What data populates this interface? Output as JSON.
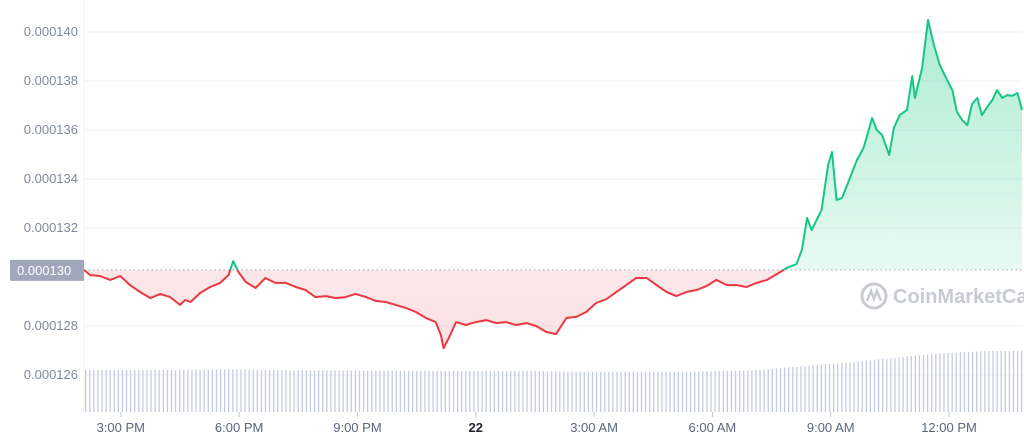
{
  "chart_data": {
    "type": "line",
    "title": "",
    "xlabel": "",
    "ylabel": "",
    "ylim": [
      0.0001255,
      0.000141
    ],
    "xlim": [
      "21 14:04",
      "22 13:51"
    ],
    "grid": "horizontal",
    "y_ticks": [
      "0.000140",
      "0.000138",
      "0.000136",
      "0.000134",
      "0.000132",
      "0.000128",
      "0.000126"
    ],
    "y_tick_values": [
      0.00014,
      0.000138,
      0.000136,
      0.000134,
      0.000132,
      0.000128,
      0.000126
    ],
    "x_ticks": [
      {
        "label": "3:00 PM",
        "t": "21 15:00",
        "bold": false
      },
      {
        "label": "6:00 PM",
        "t": "21 18:00",
        "bold": false
      },
      {
        "label": "9:00 PM",
        "t": "21 21:00",
        "bold": false
      },
      {
        "label": "22",
        "t": "22 00:00",
        "bold": true
      },
      {
        "label": "3:00 AM",
        "t": "22 03:00",
        "bold": false
      },
      {
        "label": "6:00 AM",
        "t": "22 06:00",
        "bold": false
      },
      {
        "label": "9:00 AM",
        "t": "22 09:00",
        "bold": false
      },
      {
        "label": "12:00 PM",
        "t": "22 12:00",
        "bold": false
      }
    ],
    "reference": {
      "label": "0.000130",
      "value": 0.00013029
    },
    "colors": {
      "up": "#16c784",
      "down": "#ea3943",
      "volume": "#c7cbe0",
      "grid": "#eff2f5",
      "ref_box": "#a1a7bb"
    },
    "watermark": "CoinMarketCap",
    "series": [
      {
        "points": [
          [
            "21 14:04",
            0.00013029
          ],
          [
            "21 14:13",
            0.00013008
          ],
          [
            "21 14:28",
            0.00013004
          ],
          [
            "21 14:44",
            0.00012988
          ],
          [
            "21 14:59",
            0.00013004
          ],
          [
            "21 15:14",
            0.00012967
          ],
          [
            "21 15:29",
            0.00012939
          ],
          [
            "21 15:45",
            0.00012914
          ],
          [
            "21 16:00",
            0.00012931
          ],
          [
            "21 16:15",
            0.00012918
          ],
          [
            "21 16:30",
            0.00012886
          ],
          [
            "21 16:38",
            0.00012906
          ],
          [
            "21 16:46",
            0.00012898
          ],
          [
            "21 17:01",
            0.00012935
          ],
          [
            "21 17:16",
            0.00012959
          ],
          [
            "21 17:31",
            0.00012976
          ],
          [
            "21 17:44",
            0.00013008
          ],
          [
            "21 17:51",
            0.00013065
          ],
          [
            "21 17:59",
            0.0001302
          ],
          [
            "21 18:10",
            0.0001298
          ],
          [
            "21 18:25",
            0.00012955
          ],
          [
            "21 18:40",
            0.00012996
          ],
          [
            "21 18:55",
            0.00012976
          ],
          [
            "21 19:11",
            0.00012976
          ],
          [
            "21 19:26",
            0.00012959
          ],
          [
            "21 19:41",
            0.00012947
          ],
          [
            "21 19:56",
            0.00012918
          ],
          [
            "21 20:12",
            0.00012922
          ],
          [
            "21 20:27",
            0.00012914
          ],
          [
            "21 20:42",
            0.00012918
          ],
          [
            "21 20:57",
            0.00012931
          ],
          [
            "21 21:13",
            0.00012918
          ],
          [
            "21 21:28",
            0.00012902
          ],
          [
            "21 21:43",
            0.00012898
          ],
          [
            "21 21:58",
            0.00012886
          ],
          [
            "21 22:14",
            0.00012873
          ],
          [
            "21 22:29",
            0.00012857
          ],
          [
            "21 22:44",
            0.00012833
          ],
          [
            "21 22:59",
            0.00012816
          ],
          [
            "21 23:07",
            0.00012763
          ],
          [
            "21 23:11",
            0.0001271
          ],
          [
            "21 23:19",
            0.00012751
          ],
          [
            "21 23:30",
            0.00012816
          ],
          [
            "21 23:45",
            0.00012804
          ],
          [
            "22 00:00",
            0.00012816
          ],
          [
            "22 00:16",
            0.00012824
          ],
          [
            "22 00:31",
            0.00012812
          ],
          [
            "22 00:46",
            0.00012816
          ],
          [
            "22 01:01",
            0.00012804
          ],
          [
            "22 01:17",
            0.00012812
          ],
          [
            "22 01:32",
            0.000128
          ],
          [
            "22 01:47",
            0.00012776
          ],
          [
            "22 02:02",
            0.00012767
          ],
          [
            "22 02:18",
            0.00012833
          ],
          [
            "22 02:33",
            0.00012837
          ],
          [
            "22 02:48",
            0.00012857
          ],
          [
            "22 03:03",
            0.00012894
          ],
          [
            "22 03:19",
            0.0001291
          ],
          [
            "22 03:34",
            0.00012939
          ],
          [
            "22 03:49",
            0.00012967
          ],
          [
            "22 04:04",
            0.00012996
          ],
          [
            "22 04:20",
            0.00012996
          ],
          [
            "22 04:35",
            0.00012967
          ],
          [
            "22 04:50",
            0.00012939
          ],
          [
            "22 05:05",
            0.00012922
          ],
          [
            "22 05:21",
            0.00012939
          ],
          [
            "22 05:36",
            0.00012947
          ],
          [
            "22 05:51",
            0.00012963
          ],
          [
            "22 06:06",
            0.00012988
          ],
          [
            "22 06:22",
            0.00012967
          ],
          [
            "22 06:37",
            0.00012967
          ],
          [
            "22 06:52",
            0.00012959
          ],
          [
            "22 07:07",
            0.00012976
          ],
          [
            "22 07:23",
            0.00012988
          ],
          [
            "22 07:38",
            0.00013012
          ],
          [
            "22 07:53",
            0.00013037
          ],
          [
            "22 08:08",
            0.00013053
          ],
          [
            "22 08:16",
            0.0001311
          ],
          [
            "22 08:24",
            0.00013241
          ],
          [
            "22 08:31",
            0.00013192
          ],
          [
            "22 08:46",
            0.00013273
          ],
          [
            "22 08:56",
            0.00013457
          ],
          [
            "22 09:02",
            0.0001351
          ],
          [
            "22 09:09",
            0.00013314
          ],
          [
            "22 09:17",
            0.00013322
          ],
          [
            "22 09:25",
            0.00013376
          ],
          [
            "22 09:40",
            0.00013478
          ],
          [
            "22 09:50",
            0.00013527
          ],
          [
            "22 10:03",
            0.00013649
          ],
          [
            "22 10:10",
            0.000136
          ],
          [
            "22 10:18",
            0.0001358
          ],
          [
            "22 10:29",
            0.00013498
          ],
          [
            "22 10:36",
            0.00013608
          ],
          [
            "22 10:45",
            0.00013661
          ],
          [
            "22 10:56",
            0.00013682
          ],
          [
            "22 11:04",
            0.0001382
          ],
          [
            "22 11:08",
            0.00013731
          ],
          [
            "22 11:19",
            0.00013853
          ],
          [
            "22 11:28",
            0.00014049
          ],
          [
            "22 11:37",
            0.00013947
          ],
          [
            "22 11:46",
            0.00013865
          ],
          [
            "22 11:57",
            0.00013804
          ],
          [
            "22 12:05",
            0.00013763
          ],
          [
            "22 12:12",
            0.00013674
          ],
          [
            "22 12:20",
            0.00013641
          ],
          [
            "22 12:28",
            0.0001362
          ],
          [
            "22 12:35",
            0.00013706
          ],
          [
            "22 12:43",
            0.00013731
          ],
          [
            "22 12:50",
            0.00013661
          ],
          [
            "22 12:58",
            0.00013694
          ],
          [
            "22 13:06",
            0.00013723
          ],
          [
            "22 13:13",
            0.00013763
          ],
          [
            "22 13:21",
            0.00013731
          ],
          [
            "22 13:29",
            0.00013743
          ],
          [
            "22 13:36",
            0.00013739
          ],
          [
            "22 13:44",
            0.00013751
          ],
          [
            "22 13:51",
            0.00013682
          ]
        ]
      }
    ],
    "volume_relative": [
      69,
      69,
      69,
      69,
      70,
      70,
      69,
      68,
      68,
      68,
      67,
      67,
      67,
      67,
      67,
      67,
      66,
      66,
      66,
      66,
      66,
      67,
      68,
      72,
      76,
      80,
      85,
      90,
      95,
      98,
      100,
      100
    ]
  }
}
